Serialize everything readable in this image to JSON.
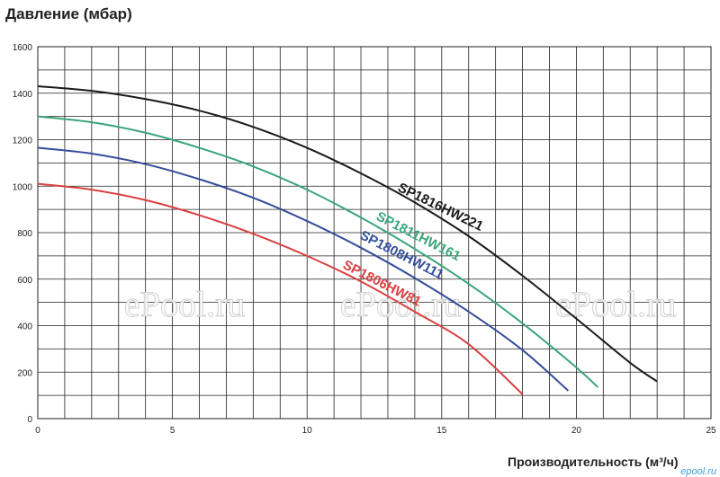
{
  "chart_data": {
    "type": "line",
    "ylabel": "Давление (мбар)",
    "xlabel": "Производительность (м³/ч)",
    "xlim": [
      0,
      25
    ],
    "ylim": [
      0,
      1600
    ],
    "xticks": [
      0,
      5,
      10,
      15,
      20,
      25
    ],
    "yticks": [
      0,
      200,
      400,
      600,
      800,
      1000,
      1200,
      1400,
      1600
    ],
    "grid": true,
    "series": [
      {
        "name": "SP1816HW221",
        "color": "#1a1a1a",
        "x": [
          0,
          2,
          4,
          6,
          8,
          10,
          12,
          14,
          16,
          18,
          20,
          22,
          23
        ],
        "y": [
          1430,
          1410,
          1375,
          1325,
          1255,
          1165,
          1055,
          930,
          785,
          615,
          430,
          240,
          160
        ]
      },
      {
        "name": "SP1811HW161",
        "color": "#3aa57a",
        "x": [
          0,
          2,
          4,
          6,
          8,
          10,
          12,
          14,
          16,
          18,
          20,
          20.8
        ],
        "y": [
          1300,
          1275,
          1230,
          1165,
          1085,
          985,
          865,
          730,
          580,
          410,
          220,
          135
        ]
      },
      {
        "name": "SP1808HW111",
        "color": "#334d99",
        "x": [
          0,
          2,
          4,
          6,
          8,
          10,
          12,
          14,
          16,
          18,
          19.7
        ],
        "y": [
          1165,
          1140,
          1095,
          1030,
          950,
          850,
          735,
          605,
          460,
          295,
          120
        ]
      },
      {
        "name": "SP1806HW81",
        "color": "#d94040",
        "x": [
          0,
          2,
          4,
          6,
          8,
          10,
          12,
          14,
          16,
          18
        ],
        "y": [
          1010,
          985,
          940,
          875,
          795,
          700,
          590,
          460,
          320,
          105
        ]
      }
    ],
    "annotations": [
      {
        "text": "SP1816HW221",
        "series": 0
      },
      {
        "text": "SP1811HW161",
        "series": 1
      },
      {
        "text": "SP1808HW111",
        "series": 2
      },
      {
        "text": "SP1806HW81",
        "series": 3
      }
    ]
  },
  "watermark": "ePool.ru",
  "corner_logo": "epool.ru"
}
